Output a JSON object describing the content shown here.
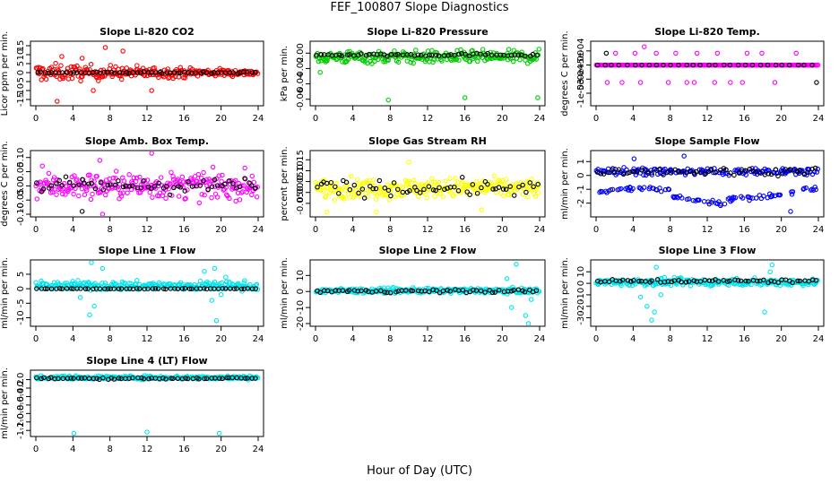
{
  "title": "FEF_100807  Slope Diagnostics",
  "xlabel": "Hour of Day (UTC)",
  "chart_data": [
    {
      "type": "scatter",
      "title": "Slope Li-820 CO2",
      "ylabel": "Licor ppm per min.",
      "xlim": [
        0,
        24
      ],
      "ylim": [
        -17,
        16
      ],
      "yticks": [
        "-15",
        "-10",
        "-5",
        "0",
        "5",
        "10",
        "15"
      ],
      "yvals": [
        -15,
        -10,
        -5,
        0,
        5,
        10,
        15
      ],
      "xticks": [
        "0",
        "4",
        "8",
        "12",
        "16",
        "20",
        "24"
      ],
      "grid": false,
      "series": [
        {
          "name": "",
          "color": "#ff0000",
          "center": 0,
          "spread": 4,
          "taper": true,
          "outliers": [
            [
              2.3,
              -16
            ],
            [
              2.8,
              9
            ],
            [
              6.2,
              -10
            ],
            [
              7.5,
              14
            ],
            [
              9.4,
              12
            ],
            [
              12.5,
              -10
            ],
            [
              5.0,
              8
            ]
          ]
        },
        {
          "name": "",
          "color": "#000000",
          "center": 0,
          "spread": 0.4
        }
      ]
    },
    {
      "type": "scatter",
      "title": "Slope Li-820 Pressure",
      "ylabel": "kPa per min.",
      "xlim": [
        0,
        24
      ],
      "ylim": [
        -0.065,
        0.012
      ],
      "yticks": [
        "-0.06",
        "-0.04",
        "-0.02",
        "0.00"
      ],
      "yvals": [
        -0.06,
        -0.04,
        -0.02,
        0.0
      ],
      "xticks": [
        "0",
        "4",
        "8",
        "12",
        "16",
        "20",
        "24"
      ],
      "grid": false,
      "series": [
        {
          "name": "",
          "color": "#00cc00",
          "center": -0.005,
          "spread": 0.008,
          "outliers": [
            [
              7.8,
              -0.061
            ],
            [
              16.0,
              -0.058
            ],
            [
              23.8,
              -0.058
            ],
            [
              0.5,
              -0.025
            ]
          ]
        },
        {
          "name": "",
          "color": "#000000",
          "center": -0.002,
          "spread": 0.002
        }
      ]
    },
    {
      "type": "scatter",
      "title": "Slope Li-820 Temp.",
      "ylabel": "degrees C per min.",
      "xlim": [
        0,
        24
      ],
      "ylim": [
        -0.00135,
        0.00075
      ],
      "yticks": [
        "-1e-03",
        "-5e-04",
        "0e+00",
        "5e-04"
      ],
      "yvals": [
        -0.001,
        -0.0005,
        0,
        0.0005
      ],
      "xticks": [
        "0",
        "4",
        "8",
        "12",
        "16",
        "20",
        "24"
      ],
      "grid": false,
      "series": [
        {
          "name": "",
          "color": "#ff00ff",
          "center": 0,
          "spread": 0,
          "outliers": [
            [
              1.2,
              -0.00062
            ],
            [
              2.8,
              -0.00062
            ],
            [
              4.8,
              -0.00062
            ],
            [
              5.2,
              0.00065
            ],
            [
              7.8,
              -0.00062
            ],
            [
              9.8,
              -0.00062
            ],
            [
              10.6,
              -0.00062
            ],
            [
              12.8,
              -0.00062
            ],
            [
              14.5,
              -0.00062
            ],
            [
              15.8,
              -0.00062
            ],
            [
              19.3,
              -0.00062
            ],
            [
              2.1,
              0.00042
            ],
            [
              4.2,
              0.00042
            ],
            [
              6.5,
              0.00042
            ],
            [
              8.6,
              0.00042
            ],
            [
              10.9,
              0.00042
            ],
            [
              13.1,
              0.00042
            ],
            [
              16.3,
              0.00042
            ],
            [
              17.9,
              0.00042
            ],
            [
              21.6,
              0.00042
            ]
          ]
        },
        {
          "name": "",
          "color": "#000000",
          "center": 0,
          "spread": 0,
          "outliers": [
            [
              1.1,
              0.00042
            ],
            [
              23.8,
              -0.00062
            ]
          ]
        }
      ]
    },
    {
      "type": "scatter",
      "title": "Slope Amb. Box Temp.",
      "ylabel": "degrees C per min.",
      "xlim": [
        0,
        24
      ],
      "ylim": [
        -0.1,
        0.115
      ],
      "yticks": [
        "-0.10",
        "-0.05",
        "0.00",
        "0.05",
        "0.10"
      ],
      "yvals": [
        -0.1,
        -0.05,
        0.0,
        0.05,
        0.1
      ],
      "xticks": [
        "0",
        "4",
        "8",
        "12",
        "16",
        "20",
        "24"
      ],
      "grid": false,
      "series": [
        {
          "name": "",
          "color": "#ff00ff",
          "center": 0,
          "spread": 0.045,
          "outliers": [
            [
              0.7,
              0.07
            ],
            [
              6.9,
              0.09
            ],
            [
              12.5,
              0.115
            ],
            [
              7.2,
              -0.1
            ]
          ]
        },
        {
          "name": "",
          "color": "#000000",
          "center": 0,
          "spread": 0.025,
          "outliers": [
            [
              5.0,
              -0.09
            ]
          ]
        }
      ]
    },
    {
      "type": "scatter",
      "title": "Slope Gas Stream RH",
      "ylabel": "percent per min.",
      "xlim": [
        0,
        24
      ],
      "ylim": [
        -0.1,
        0.18
      ],
      "yticks": [
        "-0.05",
        "0.00",
        "0.05",
        "0.10",
        "0.15"
      ],
      "yvals": [
        -0.05,
        0.0,
        0.05,
        0.1,
        0.15
      ],
      "xticks": [
        "0",
        "4",
        "8",
        "12",
        "16",
        "20",
        "24"
      ],
      "grid": false,
      "series": [
        {
          "name": "",
          "color": "#ffff00",
          "center": 0.02,
          "spread": 0.045,
          "outliers": [
            [
              1.2,
              -0.09
            ],
            [
              6.5,
              -0.09
            ],
            [
              17.8,
              -0.08
            ],
            [
              10.0,
              0.14
            ]
          ]
        },
        {
          "name": "",
          "color": "#000000",
          "center": 0.02,
          "spread": 0.035
        }
      ]
    },
    {
      "type": "scatter",
      "title": "Slope Sample Flow",
      "ylabel": "ml/min per min.",
      "xlim": [
        0,
        24
      ],
      "ylim": [
        -2.8,
        1.6
      ],
      "yticks": [
        "-2",
        "-1",
        "0",
        "1"
      ],
      "yvals": [
        -2,
        -1,
        0,
        1
      ],
      "xticks": [
        "0",
        "4",
        "8",
        "12",
        "16",
        "20",
        "24"
      ],
      "grid": false,
      "series": [
        {
          "name": "",
          "color": "#0000ff",
          "center": 0.3,
          "spread": 0.25,
          "twoband": true,
          "band2": -1.3,
          "outliers": [
            [
              4.1,
              1.2
            ],
            [
              21.0,
              -2.6
            ],
            [
              9.5,
              1.4
            ]
          ]
        },
        {
          "name": "",
          "color": "#000000",
          "center": 0.3,
          "spread": 0.25
        }
      ]
    },
    {
      "type": "scatter",
      "title": "Slope Line 1 Flow",
      "ylabel": "ml/min per min.",
      "xlim": [
        0,
        24
      ],
      "ylim": [
        -12,
        9
      ],
      "yticks": [
        "-10",
        "-5",
        "0",
        "5"
      ],
      "yvals": [
        -10,
        -5,
        0,
        5
      ],
      "xticks": [
        "0",
        "4",
        "8",
        "12",
        "16",
        "20",
        "24"
      ],
      "grid": false,
      "series": [
        {
          "name": "",
          "color": "#00e5ee",
          "center": 1,
          "spread": 1.5,
          "outliers": [
            [
              6.0,
              9
            ],
            [
              6.3,
              -6
            ],
            [
              4.8,
              -3
            ],
            [
              7.2,
              7
            ],
            [
              19.5,
              -11
            ],
            [
              19.3,
              7
            ],
            [
              18.2,
              6
            ],
            [
              19.0,
              -4
            ],
            [
              20.0,
              -2
            ],
            [
              5.8,
              -9
            ],
            [
              20.5,
              4
            ]
          ]
        },
        {
          "name": "",
          "color": "#000000",
          "center": 0,
          "spread": 0.1
        }
      ]
    },
    {
      "type": "scatter",
      "title": "Slope Line 2 Flow",
      "ylabel": "ml/min per min.",
      "xlim": [
        0,
        24
      ],
      "ylim": [
        -20,
        18
      ],
      "yticks": [
        "-20",
        "-10",
        "0",
        "10"
      ],
      "yvals": [
        -20,
        -10,
        0,
        10
      ],
      "xticks": [
        "0",
        "4",
        "8",
        "12",
        "16",
        "20",
        "24"
      ],
      "grid": false,
      "series": [
        {
          "name": "",
          "color": "#00e5ee",
          "center": 0.5,
          "spread": 1.5,
          "outliers": [
            [
              21.5,
              17
            ],
            [
              22.5,
              -15
            ],
            [
              21.0,
              -10
            ],
            [
              22.8,
              -20
            ],
            [
              23.1,
              -5
            ],
            [
              20.5,
              8
            ]
          ]
        },
        {
          "name": "",
          "color": "#000000",
          "center": 0.3,
          "spread": 1.0
        }
      ]
    },
    {
      "type": "scatter",
      "title": "Slope Line 3 Flow",
      "ylabel": "ml/min per min.",
      "xlim": [
        0,
        24
      ],
      "ylim": [
        -35,
        18
      ],
      "yticks": [
        "-30",
        "-20",
        "-10",
        "0",
        "10"
      ],
      "yvals": [
        -30,
        -20,
        -10,
        0,
        10
      ],
      "xticks": [
        "0",
        "4",
        "8",
        "12",
        "16",
        "20",
        "24"
      ],
      "grid": false,
      "series": [
        {
          "name": "",
          "color": "#00e5ee",
          "center": 1,
          "spread": 3,
          "outliers": [
            [
              6.0,
              -32
            ],
            [
              5.5,
              -20
            ],
            [
              6.5,
              14
            ],
            [
              7.0,
              -10
            ],
            [
              19.0,
              16
            ],
            [
              18.2,
              -25
            ],
            [
              18.8,
              10
            ],
            [
              4.8,
              -12
            ],
            [
              6.3,
              -25
            ]
          ]
        },
        {
          "name": "",
          "color": "#000000",
          "center": 2,
          "spread": 1.5
        }
      ]
    },
    {
      "type": "scatter",
      "title": "Slope Line 4 (LT) Flow",
      "ylabel": "ml/min per min.",
      "xlim": [
        0,
        24
      ],
      "ylim": [
        -1.28,
        0.16
      ],
      "yticks": [
        "-1.2",
        "-1.0",
        "-0.8",
        "-0.6",
        "-0.4",
        "-0.2",
        "0.0"
      ],
      "yvals": [
        -1.2,
        -1.0,
        -0.8,
        -0.6,
        -0.4,
        -0.2,
        0.0
      ],
      "xticks": [
        "0",
        "4",
        "8",
        "12",
        "16",
        "20",
        "24"
      ],
      "grid": false,
      "series": [
        {
          "name": "",
          "color": "#00e5ee",
          "center": 0.05,
          "spread": 0.04,
          "outliers": [
            [
              4.1,
              -1.27
            ],
            [
              12.0,
              -1.24
            ],
            [
              19.8,
              -1.27
            ]
          ]
        },
        {
          "name": "",
          "color": "#000000",
          "center": 0.03,
          "spread": 0.02
        }
      ]
    }
  ]
}
